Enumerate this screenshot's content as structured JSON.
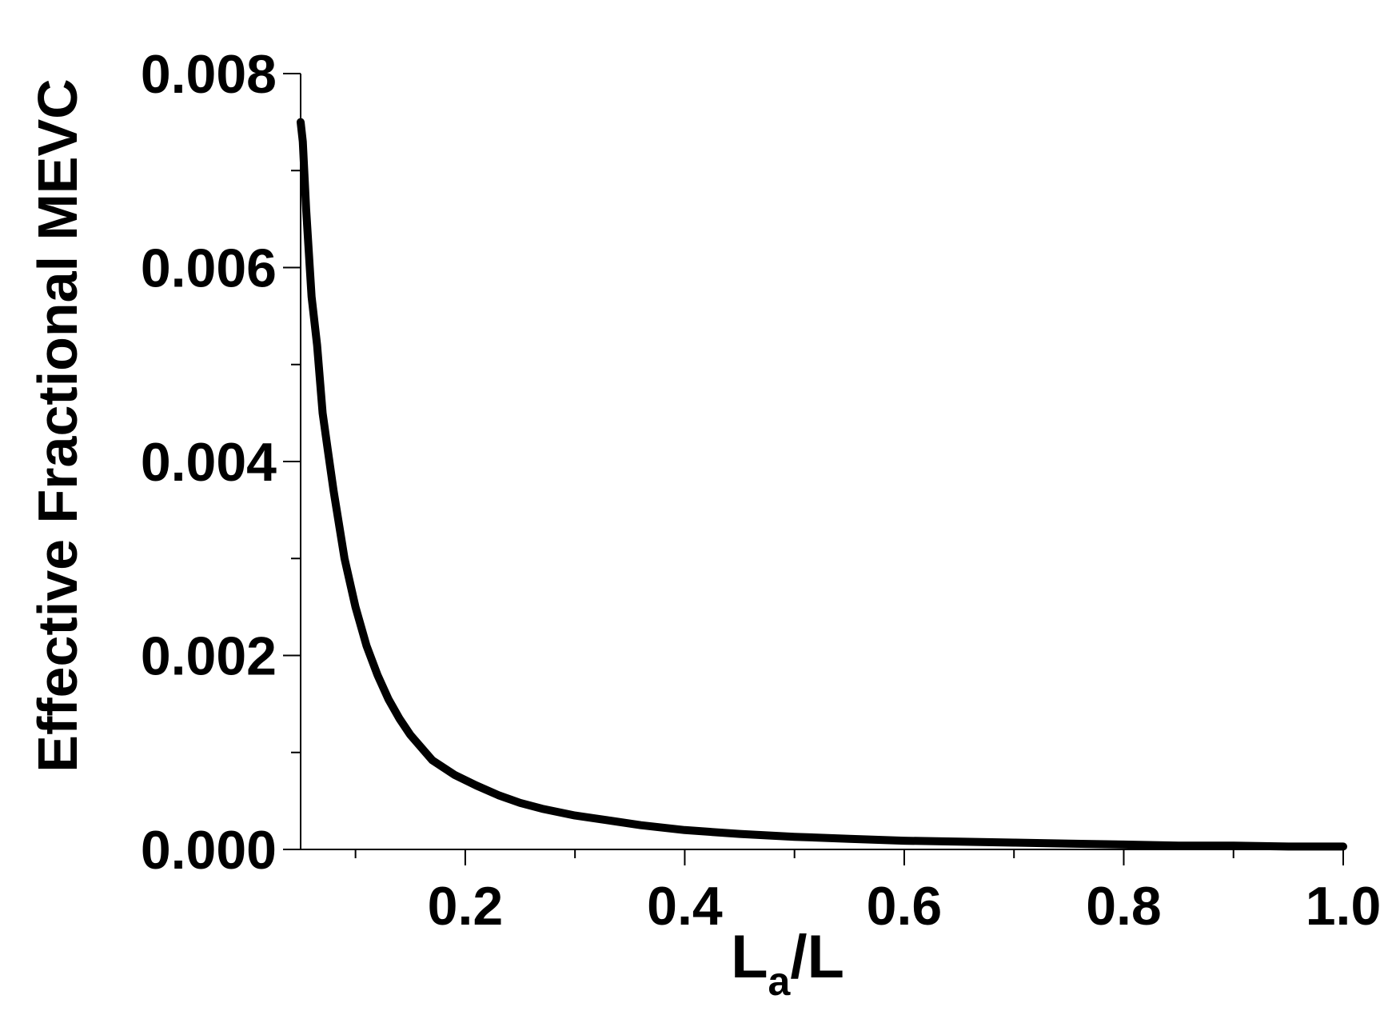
{
  "chart_data": {
    "type": "line",
    "title": "",
    "xlabel": {
      "main": "L",
      "sub": "a",
      "tail": "/L"
    },
    "ylabel": "Effective Fractional MEVC",
    "xlim": [
      0.05,
      1.0
    ],
    "ylim": [
      0,
      0.008
    ],
    "x_ticks": [
      0.2,
      0.4,
      0.6,
      0.8,
      1.0
    ],
    "x_tick_labels": [
      "0.2",
      "0.4",
      "0.6",
      "0.8",
      "1.0"
    ],
    "y_ticks": [
      0,
      0.002,
      0.004,
      0.006,
      0.008
    ],
    "y_tick_labels": [
      "0.000",
      "0.002",
      "0.004",
      "0.006",
      "0.008"
    ],
    "grid": false,
    "legend": "none",
    "line_color": "#000000",
    "series": [
      {
        "x": [
          0.05,
          0.052,
          0.055,
          0.06,
          0.065,
          0.07,
          0.075,
          0.08,
          0.09,
          0.1,
          0.11,
          0.12,
          0.13,
          0.14,
          0.15,
          0.17,
          0.19,
          0.21,
          0.23,
          0.25,
          0.27,
          0.3,
          0.33,
          0.36,
          0.4,
          0.45,
          0.5,
          0.55,
          0.6,
          0.65,
          0.7,
          0.75,
          0.8,
          0.85,
          0.9,
          0.95,
          1.0
        ],
        "y": [
          0.0075,
          0.0073,
          0.0066,
          0.0057,
          0.0052,
          0.0045,
          0.0041,
          0.0037,
          0.003,
          0.0025,
          0.0021,
          0.0018,
          0.00155,
          0.00135,
          0.00118,
          0.00092,
          0.00077,
          0.00066,
          0.00056,
          0.00048,
          0.00042,
          0.00035,
          0.0003,
          0.00025,
          0.0002,
          0.00016,
          0.00013,
          0.00011,
          9e-05,
          8e-05,
          7e-05,
          6e-05,
          5e-05,
          4e-05,
          4e-05,
          3e-05,
          3e-05
        ]
      }
    ]
  }
}
